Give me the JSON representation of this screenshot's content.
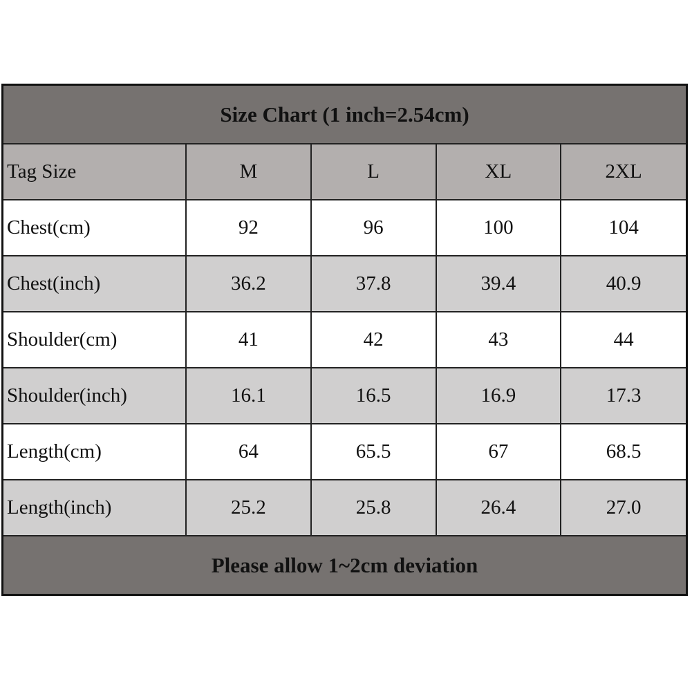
{
  "title": "Size Chart (1 inch=2.54cm)",
  "header": [
    "Tag Size",
    "M",
    "L",
    "XL",
    "2XL"
  ],
  "rows": [
    {
      "label": "Chest(cm)",
      "values": [
        "92",
        "96",
        "100",
        "104"
      ]
    },
    {
      "label": "Chest(inch)",
      "values": [
        "36.2",
        "37.8",
        "39.4",
        "40.9"
      ]
    },
    {
      "label": "Shoulder(cm)",
      "values": [
        "41",
        "42",
        "43",
        "44"
      ]
    },
    {
      "label": "Shoulder(inch)",
      "values": [
        "16.1",
        "16.5",
        "16.9",
        "17.3"
      ]
    },
    {
      "label": "Length(cm)",
      "values": [
        "64",
        "65.5",
        "67",
        "68.5"
      ]
    },
    {
      "label": "Length(inch)",
      "values": [
        "25.2",
        "25.8",
        "26.4",
        "27.0"
      ]
    }
  ],
  "footer": "Please allow 1~2cm deviation",
  "colors": {
    "banner": "#767270",
    "header": "#b3afae",
    "row_alt": "#d0cfcf",
    "row": "#ffffff"
  }
}
